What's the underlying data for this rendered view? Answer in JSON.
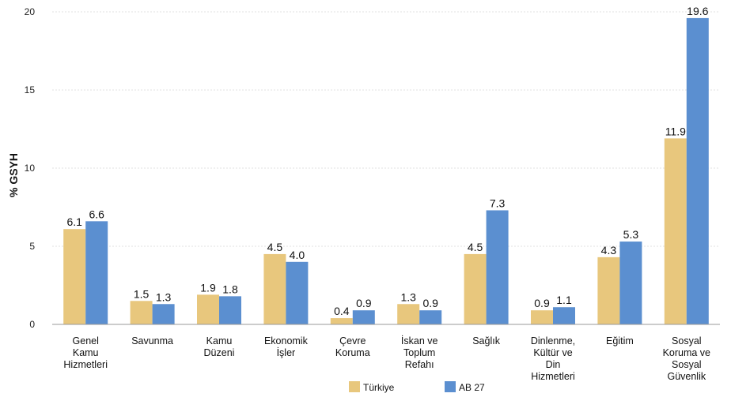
{
  "chart_data": {
    "type": "bar",
    "ylabel": "% GSYH",
    "xlabel": "",
    "ylim": [
      0,
      20
    ],
    "yticks": [
      0,
      5,
      10,
      15,
      20
    ],
    "grid": true,
    "legend_position": "bottom",
    "categories": [
      "Genel\nKamu\nHizmetleri",
      "Savunma",
      "Kamu\nDüzeni",
      "Ekonomik\nİşler",
      "Çevre\nKoruma",
      "İskan ve\nToplum\nRefahı",
      "Sağlık",
      "Dinlenme,\nKültür ve\nDin\nHizmetleri",
      "Eğitim",
      "Sosyal\nKoruma ve\nSosyal\nGüvenlik"
    ],
    "series": [
      {
        "name": "Türkiye",
        "color": "#E8C77D",
        "values": [
          6.1,
          1.5,
          1.9,
          4.5,
          0.4,
          1.3,
          4.5,
          0.9,
          4.3,
          11.9
        ],
        "labels": [
          "6.1",
          "1.5",
          "1.9",
          "4.5",
          "0.4",
          "1.3",
          "4.5",
          "0.9",
          "4.3",
          "11.9"
        ]
      },
      {
        "name": "AB 27",
        "color": "#5B8FD0",
        "values": [
          6.6,
          1.3,
          1.8,
          4.0,
          0.9,
          0.9,
          7.3,
          1.1,
          5.3,
          19.6
        ],
        "labels": [
          "6.6",
          "1.3",
          "1.8",
          "4.0",
          "0.9",
          "0.9",
          "7.3",
          "1.1",
          "5.3",
          "19.6"
        ]
      }
    ]
  }
}
